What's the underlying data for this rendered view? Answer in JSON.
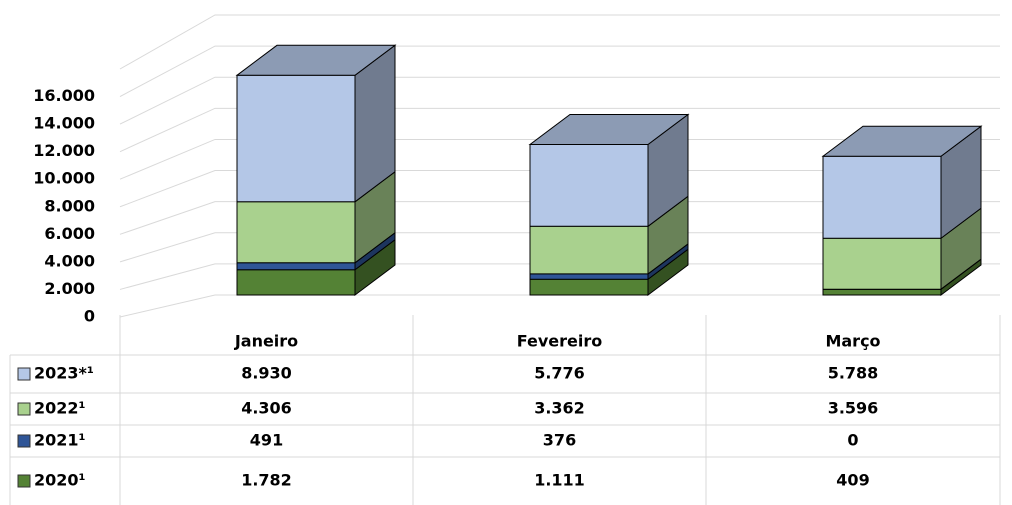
{
  "chart_data": {
    "type": "bar",
    "stacked": true,
    "three_d": true,
    "categories": [
      "Janeiro",
      "Fevereiro",
      "Março"
    ],
    "series": [
      {
        "name": "2023*¹",
        "color": "#b4c7e7",
        "values": [
          8930,
          5776,
          5788
        ],
        "value_labels": [
          "8.930",
          "5.776",
          "5.788"
        ]
      },
      {
        "name": "2022¹",
        "color": "#a9d18e",
        "values": [
          4306,
          3362,
          3596
        ],
        "value_labels": [
          "4.306",
          "3.362",
          "3.596"
        ]
      },
      {
        "name": "2021¹",
        "color": "#2f5597",
        "values": [
          491,
          376,
          0
        ],
        "value_labels": [
          "491",
          "376",
          "0"
        ]
      },
      {
        "name": "2020¹",
        "color": "#548235",
        "values": [
          1782,
          1111,
          409
        ],
        "value_labels": [
          "1.782",
          "1.111",
          "409"
        ]
      }
    ],
    "ylim": [
      0,
      18000
    ],
    "yticks": [
      0,
      {
        "value": 2000,
        "label": "2.000"
      },
      {
        "value": 4000,
        "label": "4.000"
      },
      {
        "value": 6000,
        "label": "6.000"
      },
      {
        "value": 8000,
        "label": "8.000"
      },
      {
        "value": 10000,
        "label": "10.000"
      },
      {
        "value": 12000,
        "label": "12.000"
      },
      {
        "value": 14000,
        "label": "14.000"
      },
      {
        "value": 16000,
        "label": "16.000"
      }
    ],
    "grid": true
  }
}
